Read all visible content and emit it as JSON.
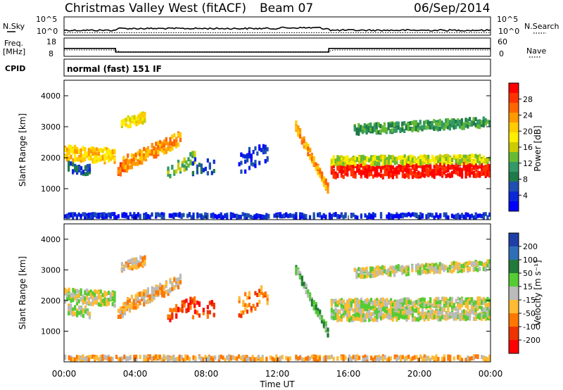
{
  "header": {
    "station": "Christmas Valley West (fitACF)",
    "beam": "Beam 07",
    "date": "06/Sep/2014"
  },
  "left_labels": {
    "nsky": "N.Sky",
    "freq_line1": "Freq.",
    "freq_line2": "[MHz]",
    "cpid": "CPID"
  },
  "right_labels": {
    "nsearch": "N.Search",
    "nave": "Nave"
  },
  "cpid_text": "normal (fast) 151 IF",
  "chart_data": [
    {
      "type": "line",
      "name": "noise",
      "left_ticks": [
        "10^5",
        "10^0"
      ],
      "right_ticks": [
        "10^5",
        "10^0"
      ],
      "x": [
        "00:00",
        "24:00"
      ]
    },
    {
      "type": "line",
      "name": "frequency-nave",
      "left_ylim": [
        8,
        18
      ],
      "left_ticks": [
        "18",
        "8"
      ],
      "right_ticks": [
        "60",
        "0"
      ],
      "freq_steps": [
        {
          "t": 0,
          "f": 12.3
        },
        {
          "t": 2.9,
          "f": 10.3
        },
        {
          "t": 14.9,
          "f": 12.3
        },
        {
          "t": 24,
          "f": 12.3
        }
      ]
    },
    {
      "type": "heatmap",
      "name": "power",
      "ylabel": "Slant Range [km]",
      "yticks": [
        "1000",
        "2000",
        "3000",
        "4000"
      ],
      "ylim": [
        0,
        4500
      ],
      "xlim": [
        0,
        24
      ],
      "colorbar": {
        "label": "Power [dB]",
        "ticks": [
          "28",
          "24",
          "20",
          "16",
          "12",
          "8",
          "4"
        ],
        "colors": [
          "#ff0000",
          "#ff3300",
          "#ff6600",
          "#ff9900",
          "#ffcc00",
          "#ffee00",
          "#cccc00",
          "#66bb33",
          "#339966",
          "#1f7a4a",
          "#1f4fb0",
          "#0a28d6",
          "#0000ff"
        ]
      }
    },
    {
      "type": "heatmap",
      "name": "velocity",
      "ylabel": "Slant Range [km]",
      "yticks": [
        "1000",
        "2000",
        "3000",
        "4000"
      ],
      "ylim": [
        0,
        4500
      ],
      "xlim": [
        0,
        24
      ],
      "colorbar": {
        "label": "Velocity [m s⁻¹]",
        "ticks": [
          "200",
          "100",
          "50",
          "15",
          "-15",
          "-50",
          "-100",
          "-200"
        ],
        "colors": [
          "#1f3fa8",
          "#2f6fb8",
          "#227a3a",
          "#55cc33",
          "#bbbbbb",
          "#ffbb33",
          "#ff7700",
          "#ee3300",
          "#ff0000"
        ]
      }
    }
  ],
  "xaxis": {
    "label": "Time UT",
    "ticks": [
      "00:00",
      "04:00",
      "08:00",
      "12:00",
      "16:00",
      "20:00",
      "00:00"
    ]
  }
}
